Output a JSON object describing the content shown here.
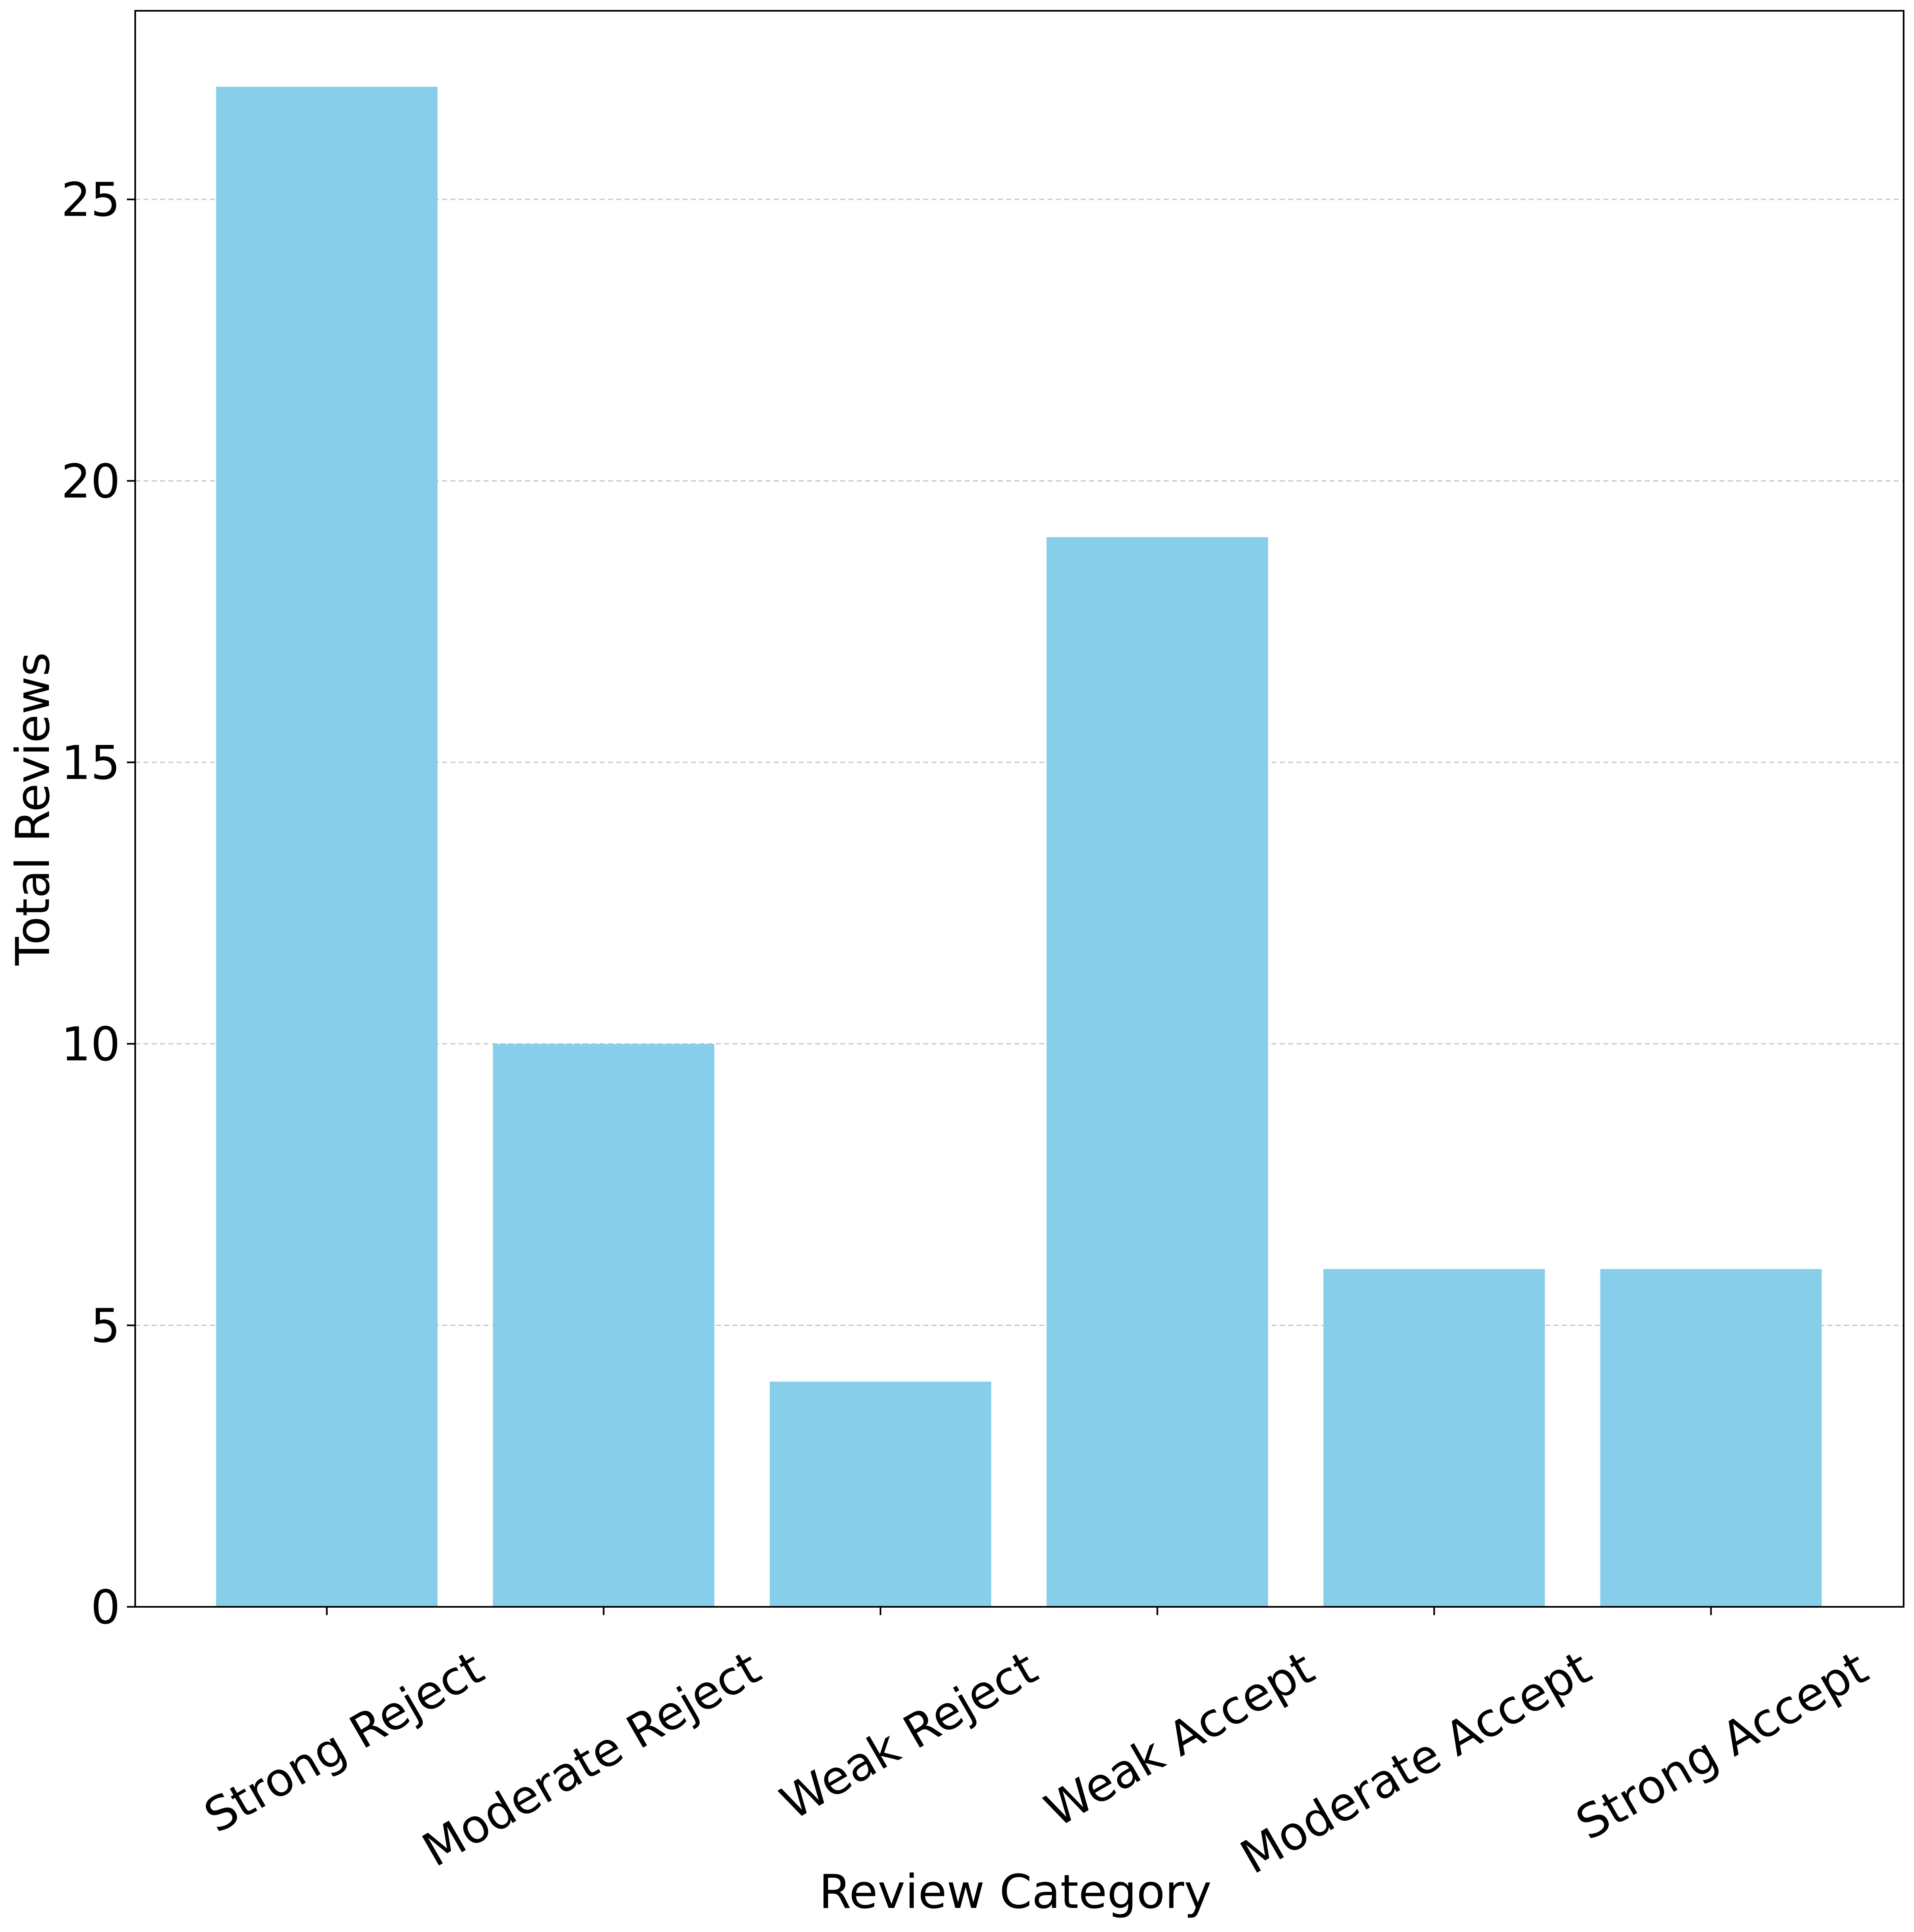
{
  "chart_data": {
    "type": "bar",
    "title": "",
    "xlabel": "Review Category",
    "ylabel": "Total Reviews",
    "categories": [
      "Strong Reject",
      "Moderate Reject",
      "Weak Reject",
      "Weak Accept",
      "Moderate Accept",
      "Strong Accept"
    ],
    "values": [
      27,
      10,
      4,
      19,
      6,
      6
    ],
    "ylim": [
      0,
      28.35
    ],
    "yticks": [
      0,
      5,
      10,
      15,
      20,
      25
    ],
    "grid": {
      "y": true,
      "x": false,
      "style": "dashed"
    },
    "legend": "none",
    "colors": {
      "bar": "#87CEEB",
      "grid": "#c8c8c8",
      "axis": "#000000"
    }
  }
}
